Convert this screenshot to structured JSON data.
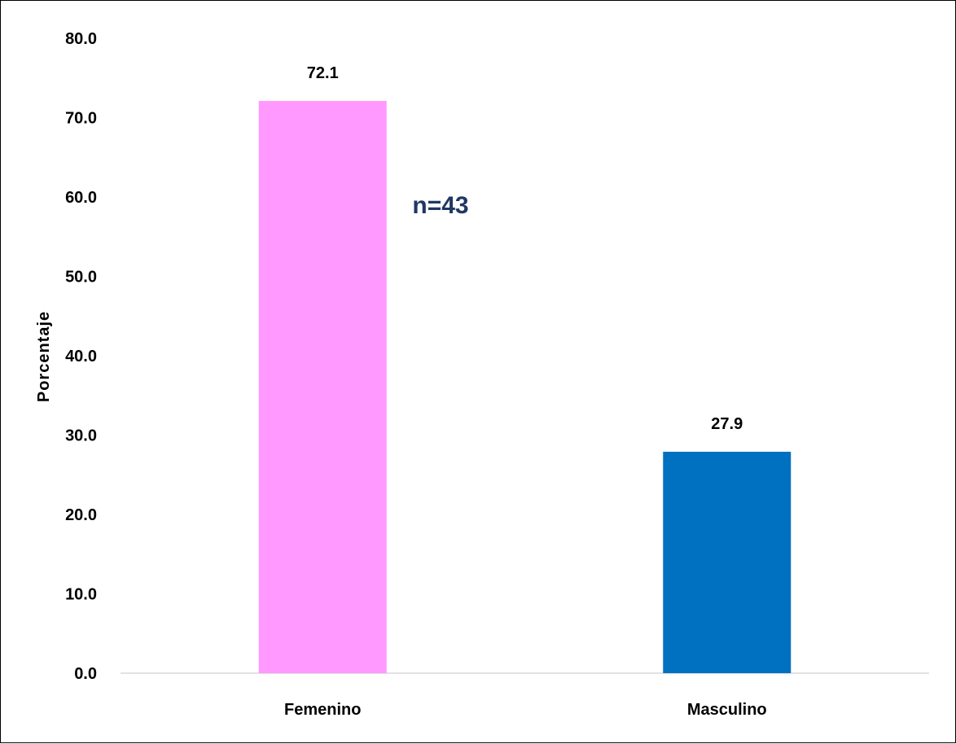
{
  "chart_data": {
    "type": "bar",
    "categories": [
      "Femenino",
      "Masculino"
    ],
    "values": [
      72.1,
      27.9
    ],
    "value_labels": [
      "72.1",
      "27.9"
    ],
    "bar_colors": [
      "#ff99ff",
      "#0070c0"
    ],
    "ylabel": "Porcentaje",
    "xlabel": "",
    "ylim": [
      0,
      80
    ],
    "yticks": [
      "0.0",
      "10.0",
      "20.0",
      "30.0",
      "40.0",
      "50.0",
      "60.0",
      "70.0",
      "80.0"
    ],
    "annotation": "n=43",
    "annotation_color": "#1f3864",
    "grid": false,
    "legend": "none"
  }
}
